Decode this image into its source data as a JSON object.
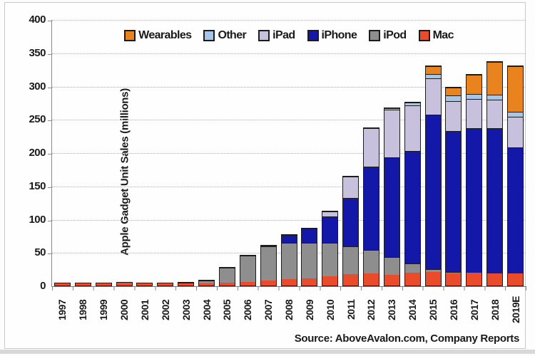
{
  "source_note": "Source: AboveAvalon.com, Company Reports",
  "y_axis": {
    "title": "Apple Gadget Unit Sales (millions)",
    "ticks": [
      0,
      50,
      100,
      150,
      200,
      250,
      300,
      350,
      400
    ]
  },
  "legend_order": [
    "Wearables",
    "Other",
    "iPad",
    "iPhone",
    "iPod",
    "Mac"
  ],
  "colors": {
    "Mac": "#e94b2b",
    "iPod": "#8e8e8e",
    "iPhone": "#1418a8",
    "iPad": "#c7c1de",
    "Other": "#a5c6e8",
    "Wearables": "#e8831e",
    "segment_border": "#1c1c1c",
    "gridline": "#adadad"
  },
  "chart_data": {
    "type": "bar",
    "stacked": true,
    "title": "",
    "xlabel": "",
    "ylabel": "Apple Gadget Unit Sales (millions)",
    "ylim": [
      0,
      400
    ],
    "grid": true,
    "legend_position": "top",
    "categories": [
      "1997",
      "1998",
      "1999",
      "2000",
      "2001",
      "2002",
      "2003",
      "2004",
      "2005",
      "2006",
      "2007",
      "2008",
      "2009",
      "2010",
      "2011",
      "2012",
      "2013",
      "2014",
      "2015",
      "2016",
      "2017",
      "2018",
      "2019E"
    ],
    "series": [
      {
        "name": "Mac",
        "values": [
          2.9,
          2.7,
          3.4,
          4.6,
          3.1,
          3.1,
          3.0,
          3.3,
          4.5,
          5.3,
          7.1,
          9.7,
          10.4,
          13.7,
          16.7,
          18.2,
          16.3,
          18.9,
          20.6,
          18.5,
          19.2,
          18.2,
          18.0
        ]
      },
      {
        "name": "iPod",
        "values": [
          0,
          0,
          0,
          0,
          0.1,
          0.4,
          0.9,
          4.4,
          22.5,
          39.4,
          51.6,
          54.8,
          54.1,
          50.3,
          42.6,
          35.2,
          26.4,
          14.4,
          4.5,
          1.5,
          0,
          0,
          0
        ]
      },
      {
        "name": "iPhone",
        "values": [
          0,
          0,
          0,
          0,
          0,
          0,
          0,
          0,
          0,
          0,
          1.4,
          11.6,
          20.7,
          40.0,
          72.3,
          125.0,
          150.3,
          169.2,
          231.2,
          211.9,
          216.8,
          217.7,
          190.0
        ]
      },
      {
        "name": "iPad",
        "values": [
          0,
          0,
          0,
          0,
          0,
          0,
          0,
          0,
          0,
          0,
          0,
          0,
          0,
          7.5,
          32.4,
          58.3,
          71.0,
          67.9,
          54.9,
          45.6,
          43.8,
          43.3,
          46.0
        ]
      },
      {
        "name": "Other",
        "values": [
          0,
          0,
          0,
          0,
          0,
          0,
          0,
          0,
          0,
          0,
          0,
          0,
          0,
          0,
          0,
          0,
          2.0,
          4.0,
          7.0,
          8.0,
          8.0,
          7.5,
          7.5
        ]
      },
      {
        "name": "Wearables",
        "values": [
          0,
          0,
          0,
          0,
          0,
          0,
          0,
          0,
          0,
          0,
          0,
          0,
          0,
          0,
          0,
          0,
          0,
          0,
          11.0,
          12.0,
          29.0,
          49.0,
          68.0
        ]
      }
    ]
  }
}
